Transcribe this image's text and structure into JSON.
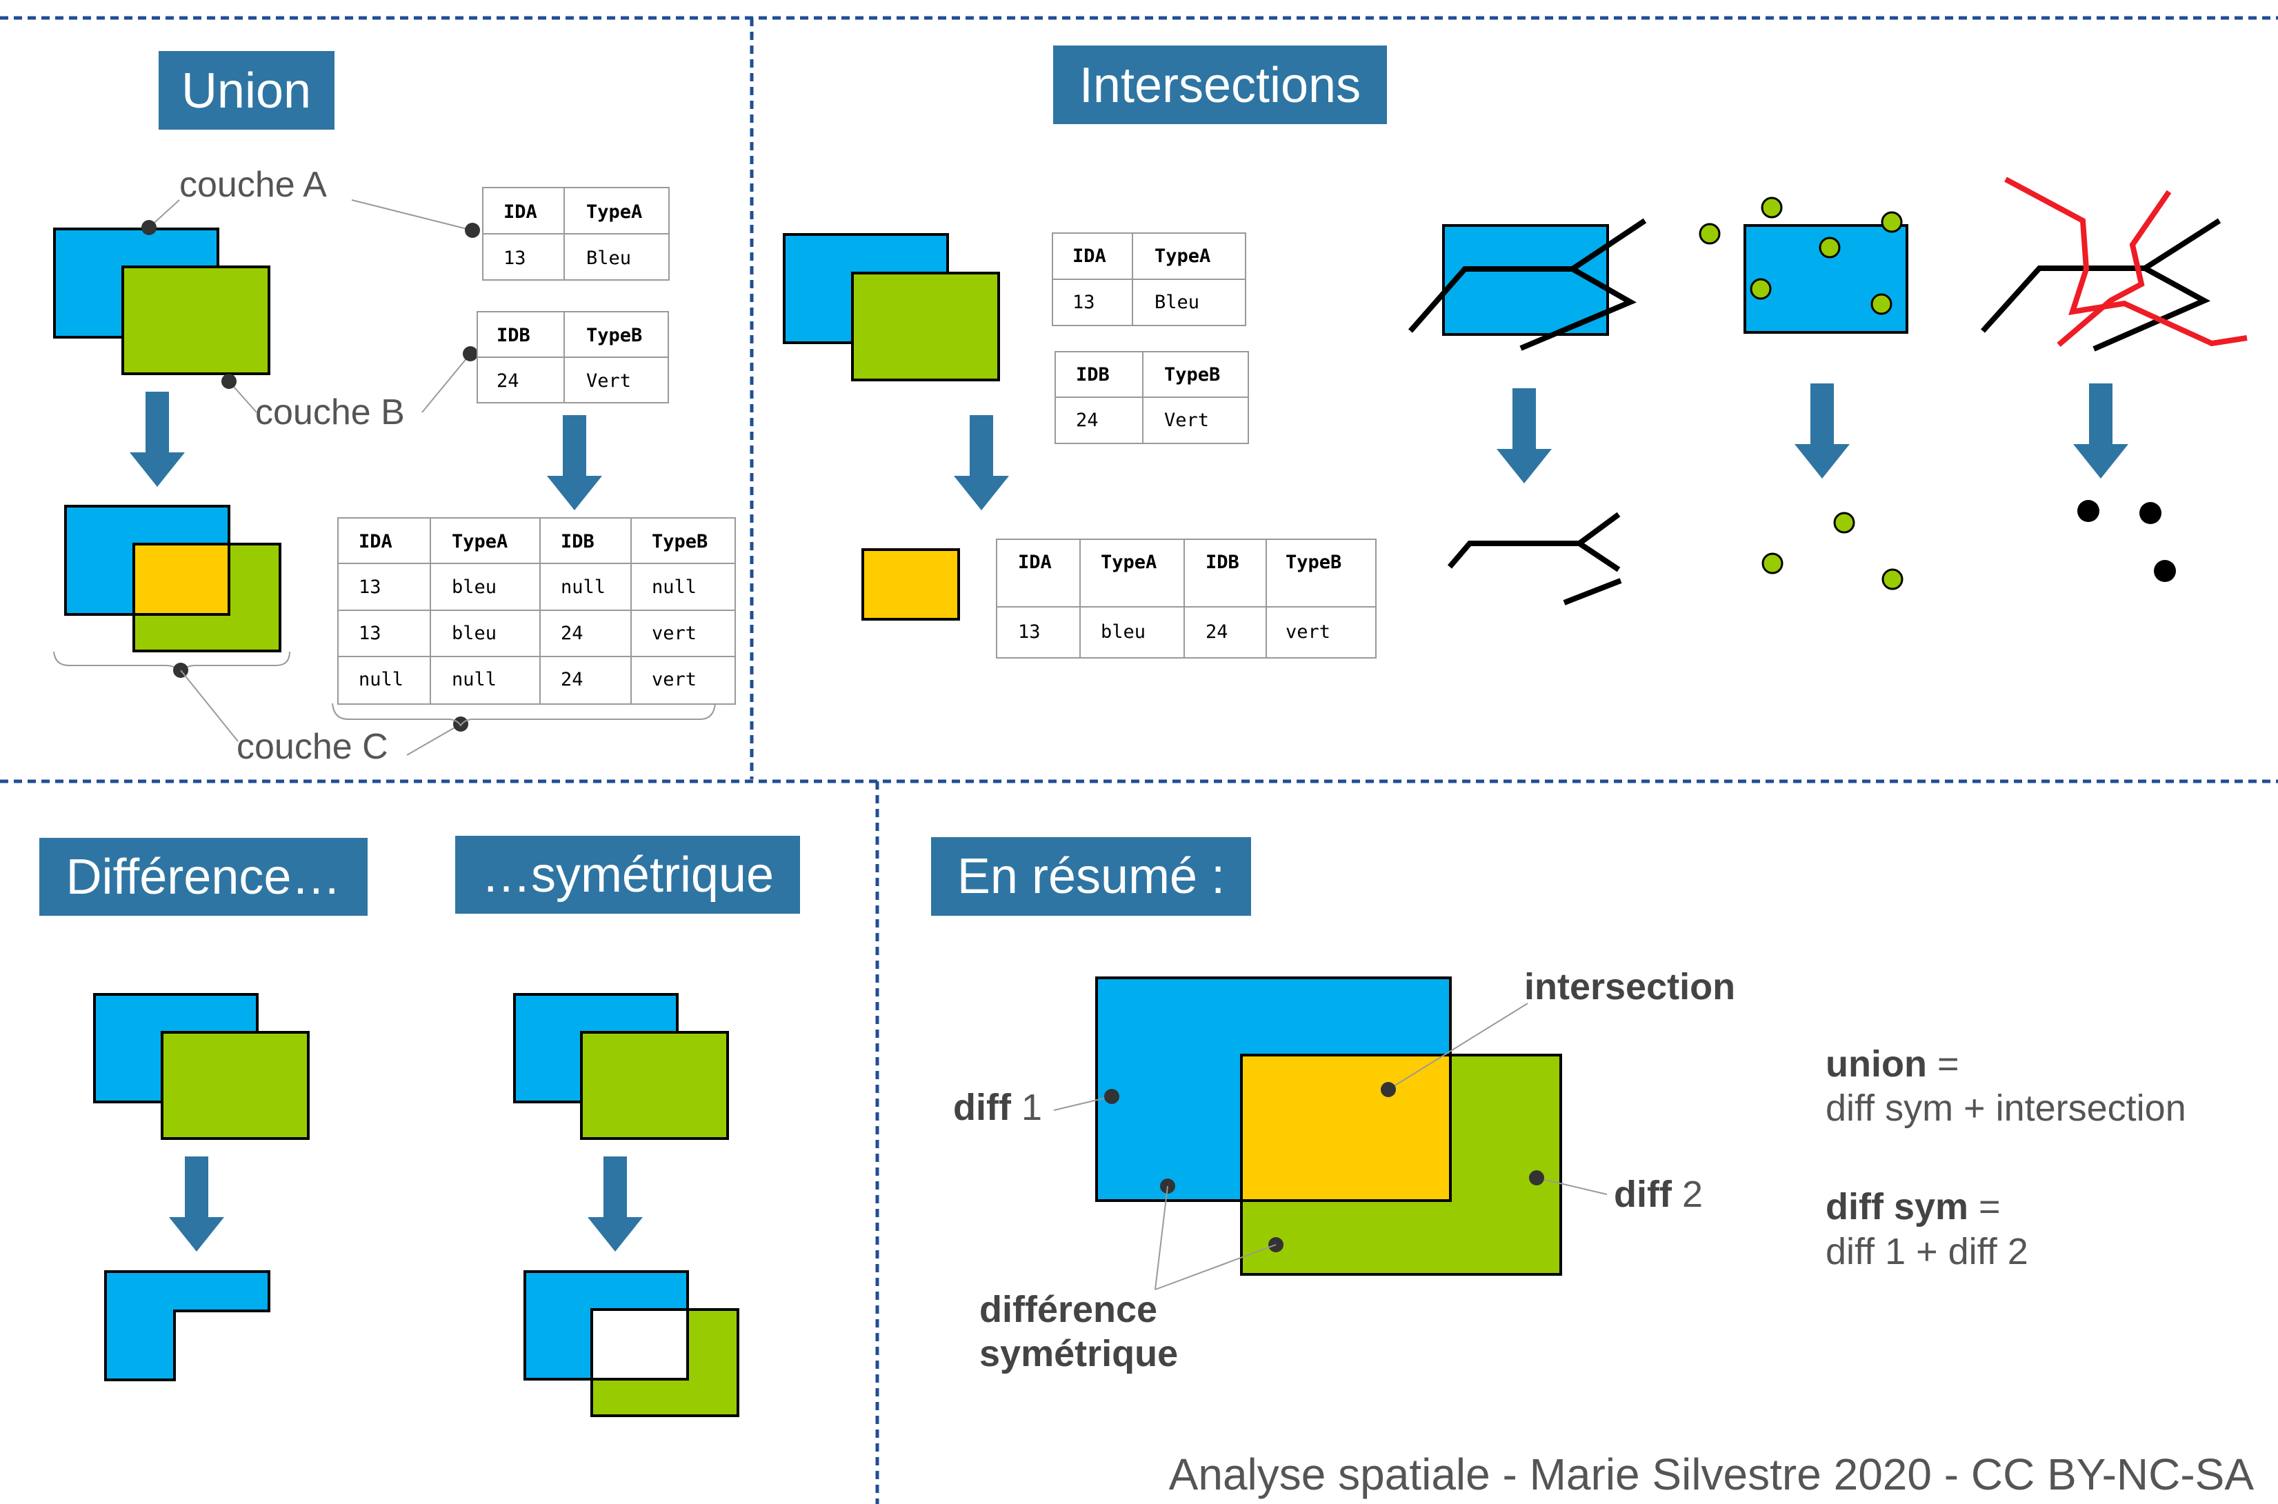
{
  "colors": {
    "blue": "#00AEEF",
    "green": "#99CC00",
    "yellow": "#FFCC00",
    "title_bg": "#2E75A3",
    "red": "#EE1C25",
    "divider": "#1F4E96"
  },
  "union": {
    "title": "Union",
    "label_a": "couche A",
    "label_b": "couche B",
    "label_c": "couche C",
    "table_a": {
      "headers": [
        "IDA",
        "TypeA"
      ],
      "rows": [
        [
          "13",
          "Bleu"
        ]
      ]
    },
    "table_b": {
      "headers": [
        "IDB",
        "TypeB"
      ],
      "rows": [
        [
          "24",
          "Vert"
        ]
      ]
    },
    "table_c": {
      "headers": [
        "IDA",
        "TypeA",
        "IDB",
        "TypeB"
      ],
      "rows": [
        [
          "13",
          "bleu",
          "null",
          "null"
        ],
        [
          "13",
          "bleu",
          "24",
          "vert"
        ],
        [
          "null",
          "null",
          "24",
          "vert"
        ]
      ]
    }
  },
  "intersections": {
    "title": "Intersections",
    "table_a": {
      "headers": [
        "IDA",
        "TypeA"
      ],
      "rows": [
        [
          "13",
          "Bleu"
        ]
      ]
    },
    "table_b": {
      "headers": [
        "IDB",
        "TypeB"
      ],
      "rows": [
        [
          "24",
          "Vert"
        ]
      ]
    },
    "table_result": {
      "headers": [
        "IDA",
        "TypeA",
        "IDB",
        "TypeB"
      ],
      "rows": [
        [
          "13",
          "bleu",
          "24",
          "vert"
        ]
      ]
    }
  },
  "difference": {
    "title": "Différence…"
  },
  "symmetric": {
    "title": "…symétrique"
  },
  "summary": {
    "title": "En résumé :",
    "intersection": "intersection",
    "diff1_bold": "diff",
    "diff1_num": " 1",
    "diff2_bold": "diff",
    "diff2_num": " 2",
    "sym_line1": "différence",
    "sym_line2": "symétrique",
    "union_bold": "union",
    "union_eq": " =",
    "union_formula": "diff sym + intersection",
    "diffsym_bold": "diff sym",
    "diffsym_eq": " =",
    "diffsym_formula": "diff 1 + diff 2"
  },
  "footer": "Analyse spatiale - Marie Silvestre 2020 - CC BY-NC-SA"
}
